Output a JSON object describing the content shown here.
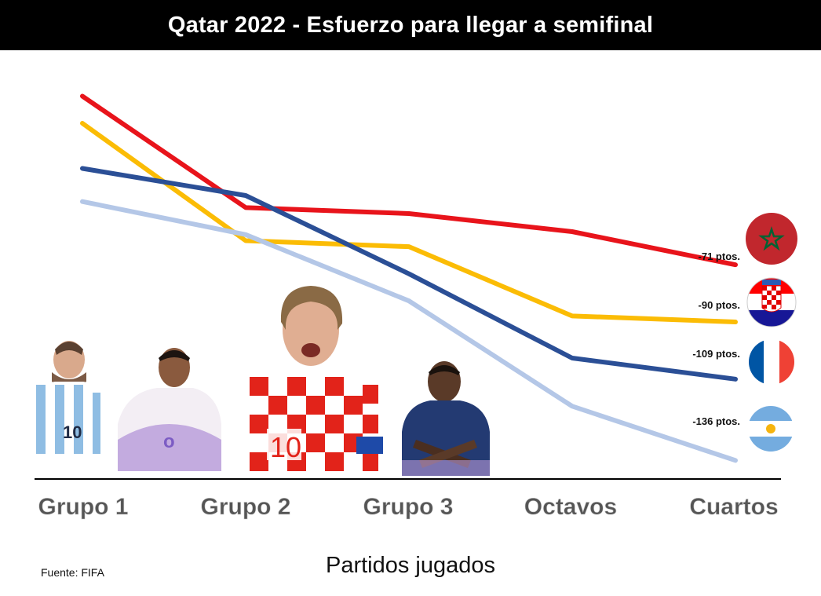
{
  "chart_data": {
    "type": "line",
    "title": "Qatar 2022 - Esfuerzo para llegar a semifinal",
    "xlabel": "Partidos jugados",
    "ylabel": "",
    "categories": [
      "Grupo 1",
      "Grupo 2",
      "Grupo 3",
      "Octavos",
      "Cuartos"
    ],
    "ylim": [
      -150,
      0
    ],
    "grid": false,
    "source": "Fuente: FIFA",
    "series": [
      {
        "name": "Marruecos",
        "color": "#e8141b",
        "values": [
          -15,
          -52,
          -54,
          -60,
          -71
        ],
        "end_label": "-71 ptos.",
        "flag": "morocco"
      },
      {
        "name": "Croacia",
        "color": "#fbbc05",
        "values": [
          -24,
          -63,
          -65,
          -88,
          -90
        ],
        "end_label": "-90 ptos.",
        "flag": "croatia"
      },
      {
        "name": "Francia",
        "color": "#2b4f96",
        "values": [
          -39,
          -48,
          -74,
          -102,
          -109
        ],
        "end_label": "-109 ptos.",
        "flag": "france"
      },
      {
        "name": "Argentina",
        "color": "#b4c7e7",
        "values": [
          -50,
          -61,
          -83,
          -118,
          -136
        ],
        "end_label": "-136 ptos.",
        "flag": "argentina"
      }
    ]
  }
}
